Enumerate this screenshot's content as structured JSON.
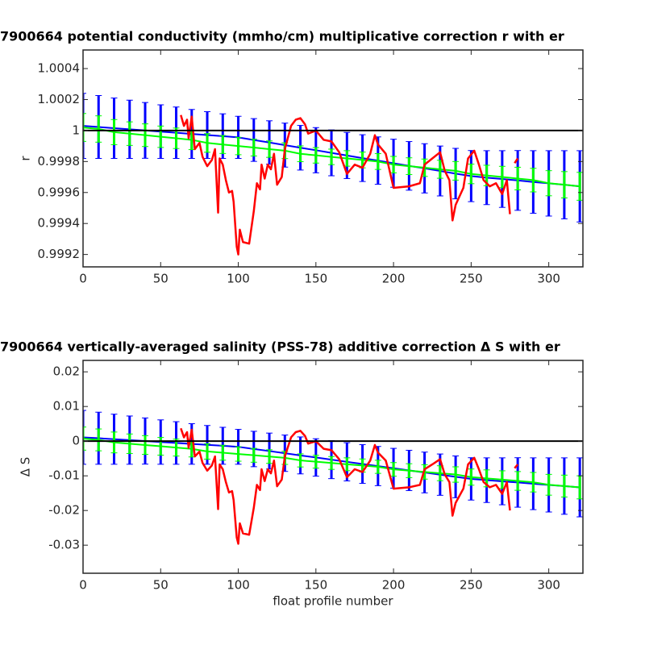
{
  "chart_data": [
    {
      "type": "errorbar",
      "title": "7900664 potential conductivity (mmho/cm) multiplicative correction r with er",
      "ylabel": "r",
      "xlim": [
        0,
        322
      ],
      "ylim": [
        0.99912,
        1.00052
      ],
      "xticks": [
        0,
        50,
        100,
        150,
        200,
        250,
        300
      ],
      "yticks": [
        0.9992,
        0.9994,
        0.9996,
        0.9998,
        1,
        1.0002,
        1.0004
      ],
      "reference": 1,
      "reference_color": "#000000",
      "series": [
        {
          "type": "errorbar",
          "color": "#0000ff",
          "x": [
            0,
            10,
            20,
            30,
            40,
            50,
            60,
            70,
            80,
            90,
            100,
            110,
            120,
            130,
            140,
            150,
            160,
            170,
            180,
            190,
            200,
            210,
            220,
            230,
            240,
            250,
            260,
            270,
            280,
            290,
            300,
            310,
            320
          ],
          "values": [
            1.00003,
            1.000023,
            1.000015,
            1.000008,
            1.000001,
            0.999993,
            0.999986,
            0.999978,
            0.999971,
            0.999964,
            0.999956,
            0.999939,
            0.999923,
            0.999906,
            0.999889,
            0.999873,
            0.999856,
            0.999839,
            0.999822,
            0.999806,
            0.999789,
            0.999772,
            0.999756,
            0.999739,
            0.999722,
            0.999706,
            0.999696,
            0.999687,
            0.999678,
            0.999668,
            0.999659,
            0.99965,
            0.99964
          ],
          "errors": [
            0.00021,
            0.000203,
            0.000195,
            0.000188,
            0.00018,
            0.000173,
            0.000166,
            0.000158,
            0.000151,
            0.000144,
            0.000136,
            0.000138,
            0.00014,
            0.000142,
            0.000144,
            0.000146,
            0.000148,
            0.000149,
            0.000151,
            0.000153,
            0.000155,
            0.000157,
            0.000159,
            0.000161,
            0.000163,
            0.000165,
            0.000174,
            0.000183,
            0.000193,
            0.000202,
            0.000211,
            0.00022,
            0.00023
          ]
        },
        {
          "type": "errorbar",
          "color": "#00ff00",
          "x": [
            0,
            10,
            20,
            30,
            40,
            50,
            60,
            70,
            80,
            90,
            100,
            110,
            120,
            130,
            140,
            150,
            160,
            170,
            180,
            190,
            200,
            210,
            220,
            230,
            240,
            250,
            260,
            270,
            280,
            290,
            300,
            310,
            320
          ],
          "values": [
            1.00002,
            1.00001,
            0.99999,
            0.99998,
            0.99997,
            0.99996,
            0.99995,
            0.99994,
            0.99992,
            0.99991,
            0.9999,
            0.99989,
            0.99988,
            0.99987,
            0.99985,
            0.99984,
            0.99983,
            0.99982,
            0.99981,
            0.9998,
            0.99978,
            0.99977,
            0.99976,
            0.99975,
            0.99974,
            0.99972,
            0.99971,
            0.9997,
            0.99969,
            0.99968,
            0.99966,
            0.99965,
            0.99964
          ],
          "errors": [
            9e-05,
            8.5e-05,
            8.1e-05,
            7.6e-05,
            7.3e-05,
            6.9e-05,
            6.6e-05,
            6.3e-05,
            6e-05,
            5.8e-05,
            5.6e-05,
            5.4e-05,
            5.3e-05,
            5.1e-05,
            5.1e-05,
            5e-05,
            5e-05,
            5e-05,
            5.1e-05,
            5.1e-05,
            5.3e-05,
            5.4e-05,
            5.6e-05,
            5.8e-05,
            6e-05,
            6.3e-05,
            6.6e-05,
            6.9e-05,
            7.3e-05,
            7.6e-05,
            8.1e-05,
            8.5e-05,
            9e-05
          ]
        },
        {
          "type": "line",
          "color": "#ff0000",
          "x": [
            63,
            65,
            67,
            68,
            70,
            72,
            75,
            77,
            80,
            83,
            85,
            87,
            88,
            90,
            92,
            94,
            96,
            97,
            99,
            100,
            101,
            103,
            107,
            110,
            112,
            114,
            115,
            117,
            119,
            121,
            123,
            125,
            128,
            130,
            134,
            137,
            140,
            143,
            145,
            150,
            155,
            160,
            165,
            170,
            175,
            180,
            185,
            188,
            190,
            195,
            200,
            210,
            217,
            220,
            225,
            230,
            233,
            236,
            238,
            240,
            245,
            248,
            252,
            255,
            258,
            262,
            266,
            270,
            273,
            275,
            277,
            278,
            280
          ],
          "values": [
            1.0001,
            1.00003,
            1.00007,
            0.99995,
            1.00009,
            0.99988,
            0.99992,
            0.99983,
            0.99977,
            0.99981,
            0.99988,
            0.99947,
            0.99982,
            0.99978,
            0.99968,
            0.9996,
            0.99961,
            0.99954,
            0.99925,
            0.9992,
            0.99936,
            0.99928,
            0.99927,
            0.99948,
            0.99966,
            0.99962,
            0.99978,
            0.99969,
            0.99978,
            0.99975,
            0.99985,
            0.99965,
            0.9997,
            0.99988,
            1.00003,
            1.00007,
            1.00008,
            1.00004,
            0.99998,
            1.0,
            0.99994,
            0.99993,
            0.99986,
            0.99972,
            0.99978,
            0.99976,
            0.99985,
            0.99997,
            0.99991,
            0.99985,
            0.99963,
            0.99964,
            0.99966,
            0.99978,
            0.99982,
            0.99986,
            0.99974,
            0.99968,
            0.99942,
            0.99952,
            0.99963,
            0.99982,
            0.99987,
            0.99978,
            0.99968,
            0.99964,
            0.99966,
            0.99959,
            0.99968,
            0.99946,
            null,
            0.99979,
            0.99982
          ]
        }
      ]
    },
    {
      "type": "errorbar",
      "title": "7900664 vertically-averaged salinity (PSS-78) additive correction Δ S with er",
      "ylabel": "Δ S",
      "xlabel": "float profile number",
      "xlim": [
        0,
        322
      ],
      "ylim": [
        -0.0381,
        0.0233
      ],
      "xticks": [
        0,
        50,
        100,
        150,
        200,
        250,
        300
      ],
      "yticks": [
        -0.03,
        -0.02,
        -0.01,
        0,
        0.01,
        0.02
      ],
      "reference": 0,
      "reference_color": "#000000",
      "series": [
        {
          "type": "errorbar",
          "color": "#0000ff",
          "x": [
            0,
            10,
            20,
            30,
            40,
            50,
            60,
            70,
            80,
            90,
            100,
            110,
            120,
            130,
            140,
            150,
            160,
            170,
            180,
            190,
            200,
            210,
            220,
            230,
            240,
            250,
            260,
            270,
            280,
            290,
            300,
            310,
            320
          ],
          "values": [
            0.0011,
            0.00085,
            0.00056,
            0.0003,
            4e-05,
            -0.00026,
            -0.00052,
            -0.00081,
            -0.00107,
            -0.00133,
            -0.00163,
            -0.00226,
            -0.00285,
            -0.00348,
            -0.00411,
            -0.0047,
            -0.00533,
            -0.00596,
            -0.00659,
            -0.00718,
            -0.00781,
            -0.00844,
            -0.00903,
            -0.00966,
            -0.01029,
            -0.01088,
            -0.01125,
            -0.01158,
            -0.01191,
            -0.01228,
            -0.01262,
            -0.01295,
            -0.01332
          ],
          "errors": [
            0.00777,
            0.00751,
            0.00722,
            0.00696,
            0.00666,
            0.0064,
            0.00614,
            0.00585,
            0.00559,
            0.00533,
            0.00503,
            0.00511,
            0.00518,
            0.00525,
            0.00533,
            0.0054,
            0.00548,
            0.00551,
            0.00559,
            0.00566,
            0.00574,
            0.00581,
            0.00588,
            0.00596,
            0.00603,
            0.00611,
            0.00644,
            0.00677,
            0.00714,
            0.00747,
            0.00781,
            0.00814,
            0.00851
          ]
        },
        {
          "type": "errorbar",
          "color": "#00ff00",
          "x": [
            0,
            10,
            20,
            30,
            40,
            50,
            60,
            70,
            80,
            90,
            100,
            110,
            120,
            130,
            140,
            150,
            160,
            170,
            180,
            190,
            200,
            210,
            220,
            230,
            240,
            250,
            260,
            270,
            280,
            290,
            300,
            310,
            320
          ],
          "values": [
            0.00074,
            0.00037,
            -0.00037,
            -0.00074,
            -0.00111,
            -0.00148,
            -0.00185,
            -0.00222,
            -0.00296,
            -0.00333,
            -0.0037,
            -0.00407,
            -0.00444,
            -0.00481,
            -0.00555,
            -0.00592,
            -0.00629,
            -0.00666,
            -0.00703,
            -0.0074,
            -0.00814,
            -0.00851,
            -0.00888,
            -0.00925,
            -0.00962,
            -0.01036,
            -0.01073,
            -0.0111,
            -0.01147,
            -0.01184,
            -0.01258,
            -0.01295,
            -0.01332
          ],
          "errors": [
            0.00333,
            0.00315,
            0.003,
            0.00281,
            0.0027,
            0.00255,
            0.00244,
            0.00233,
            0.00222,
            0.00215,
            0.00207,
            0.002,
            0.00196,
            0.00189,
            0.00189,
            0.00185,
            0.00185,
            0.00185,
            0.00189,
            0.00189,
            0.00196,
            0.002,
            0.00207,
            0.00215,
            0.00222,
            0.00233,
            0.00244,
            0.00255,
            0.0027,
            0.00281,
            0.003,
            0.00315,
            0.00333
          ]
        },
        {
          "type": "line",
          "color": "#ff0000",
          "x": [
            63,
            65,
            67,
            68,
            70,
            72,
            75,
            77,
            80,
            83,
            85,
            87,
            88,
            90,
            92,
            94,
            96,
            97,
            99,
            100,
            101,
            103,
            107,
            110,
            112,
            114,
            115,
            117,
            119,
            121,
            123,
            125,
            128,
            130,
            134,
            137,
            140,
            143,
            145,
            150,
            155,
            160,
            165,
            170,
            175,
            180,
            185,
            188,
            190,
            195,
            200,
            210,
            217,
            220,
            225,
            230,
            233,
            236,
            238,
            240,
            245,
            248,
            252,
            255,
            258,
            262,
            266,
            270,
            273,
            275,
            277,
            278,
            280
          ],
          "values": [
            0.0037,
            0.0011,
            0.0026,
            -0.0019,
            0.0033,
            -0.0044,
            -0.003,
            -0.0063,
            -0.0085,
            -0.007,
            -0.0044,
            -0.0196,
            -0.0067,
            -0.0081,
            -0.0118,
            -0.0148,
            -0.0144,
            -0.017,
            -0.0278,
            -0.0296,
            -0.0237,
            -0.0266,
            -0.027,
            -0.0192,
            -0.0126,
            -0.0141,
            -0.0081,
            -0.0115,
            -0.0081,
            -0.0093,
            -0.0056,
            -0.013,
            -0.0111,
            -0.0044,
            0.0011,
            0.0026,
            0.003,
            0.0015,
            -0.0007,
            0,
            -0.0022,
            -0.0026,
            -0.0052,
            -0.0104,
            -0.0081,
            -0.0089,
            -0.0056,
            -0.0011,
            -0.0033,
            -0.0056,
            -0.0137,
            -0.0133,
            -0.0126,
            -0.0081,
            -0.0067,
            -0.0052,
            -0.0096,
            -0.0118,
            -0.0215,
            -0.0178,
            -0.0137,
            -0.0067,
            -0.0048,
            -0.0081,
            -0.0118,
            -0.0133,
            -0.0126,
            -0.0152,
            -0.0118,
            -0.02,
            null,
            -0.0078,
            -0.0067
          ]
        }
      ]
    }
  ]
}
